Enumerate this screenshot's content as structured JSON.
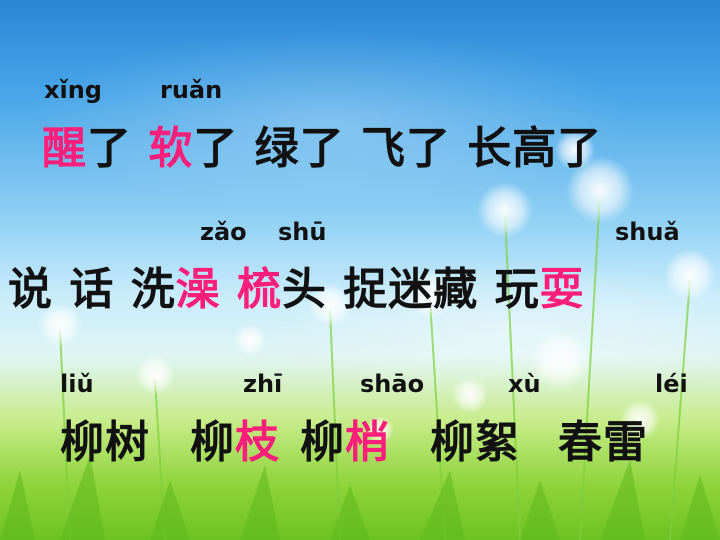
{
  "pinyin": {
    "xing": "xǐng",
    "ruan": "ruǎn",
    "zao": "zǎo",
    "shu": "shū",
    "shua": "shuǎ",
    "liu": "liǔ",
    "zhi": "zhī",
    "shao": "shāo",
    "xu": "xù",
    "lei": "léi"
  },
  "row1": {
    "xing": "醒",
    "le1": "了 ",
    "ruan": "软",
    "rest": "了 绿了 飞了 长高了"
  },
  "row2": {
    "pre": "说 话 洗",
    "zao": "澡",
    "sp": " ",
    "shu": "梳",
    "mid": "头 捉迷藏 玩",
    "shua": "耍"
  },
  "row3": {
    "liushu": "柳树",
    "liu2": "柳",
    "zhi": "枝",
    "liu3": "柳",
    "shao": "梢",
    "liuxu": "柳絮",
    "chunlei": "春雷"
  },
  "colors": {
    "highlight": "#ff1f7a",
    "text": "#111111"
  }
}
